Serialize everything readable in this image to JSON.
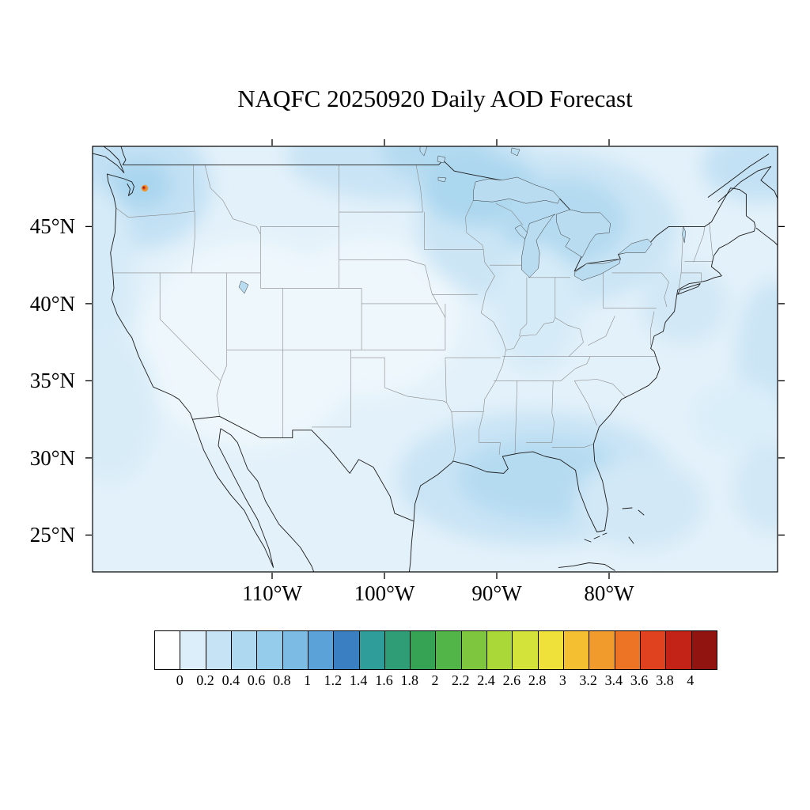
{
  "title": "NAQFC 20250920 Daily AOD Forecast",
  "map": {
    "x_tick_labels": [
      "110°W",
      "100°W",
      "90°W",
      "80°W"
    ],
    "y_tick_labels": [
      "45°N",
      "40°N",
      "35°N",
      "30°N",
      "25°N"
    ]
  },
  "colorbar": {
    "tick_labels": [
      "0",
      "0.2",
      "0.4",
      "0.6",
      "0.8",
      "1",
      "1.2",
      "1.4",
      "1.6",
      "1.8",
      "2",
      "2.2",
      "2.4",
      "2.6",
      "2.8",
      "3",
      "3.2",
      "3.4",
      "3.6",
      "3.8",
      "4"
    ],
    "colors": [
      "#ffffff",
      "#dbeef9",
      "#c6e3f5",
      "#aed8f0",
      "#95cbeb",
      "#7cbbe4",
      "#5aa2d8",
      "#3a7fc2",
      "#2f9e9b",
      "#2f9e77",
      "#35a353",
      "#52b547",
      "#7ec63e",
      "#abd839",
      "#d3e339",
      "#f0e13a",
      "#f4c032",
      "#f19b2c",
      "#ec7424",
      "#e0411e",
      "#c32317",
      "#921411"
    ]
  },
  "chart_data": {
    "type": "heatmap",
    "title": "NAQFC 20250920 Daily AOD Forecast",
    "model": "NAQFC",
    "forecast_date": "20250920",
    "variable": "Daily AOD (Aerosol Optical Depth)",
    "x_tick_labels": [
      "110°W",
      "100°W",
      "90°W",
      "80°W"
    ],
    "y_tick_labels": [
      "45°N",
      "40°N",
      "35°N",
      "30°N",
      "25°N"
    ],
    "colorbar_levels": [
      0,
      0.2,
      0.4,
      0.6,
      0.8,
      1,
      1.2,
      1.4,
      1.6,
      1.8,
      2,
      2.2,
      2.4,
      2.6,
      2.8,
      3,
      3.2,
      3.4,
      3.6,
      3.8,
      4
    ],
    "colorbar_colors": [
      "#ffffff",
      "#dbeef9",
      "#c6e3f5",
      "#aed8f0",
      "#95cbeb",
      "#7cbbe4",
      "#5aa2d8",
      "#3a7fc2",
      "#2f9e9b",
      "#2f9e77",
      "#35a353",
      "#52b547",
      "#7ec63e",
      "#abd839",
      "#d3e339",
      "#f0e13a",
      "#f4c032",
      "#f19b2c",
      "#ec7424",
      "#e0411e",
      "#c32317",
      "#921411"
    ],
    "legend_position": "bottom",
    "grid": false,
    "regions": [
      {
        "area": "most of contiguous US interior",
        "aod": 0.1
      },
      {
        "area": "Pacific Northwest coast and offshore",
        "aod": 0.3
      },
      {
        "area": "northern Plains / southern Canada band",
        "aod": 0.3
      },
      {
        "area": "Great Lakes and upper Midwest",
        "aod": 0.4
      },
      {
        "area": "Gulf of Mexico coastal waters",
        "aod": 0.3
      },
      {
        "area": "western Atlantic offshore (mid-Atlantic)",
        "aod": 0.3
      },
      {
        "area": "Gulf of St. Lawrence (northeast corner)",
        "aod": 0.3
      },
      {
        "area": "Puget Sound hotspot (small spot near Seattle)",
        "aod": 3.0
      }
    ]
  }
}
